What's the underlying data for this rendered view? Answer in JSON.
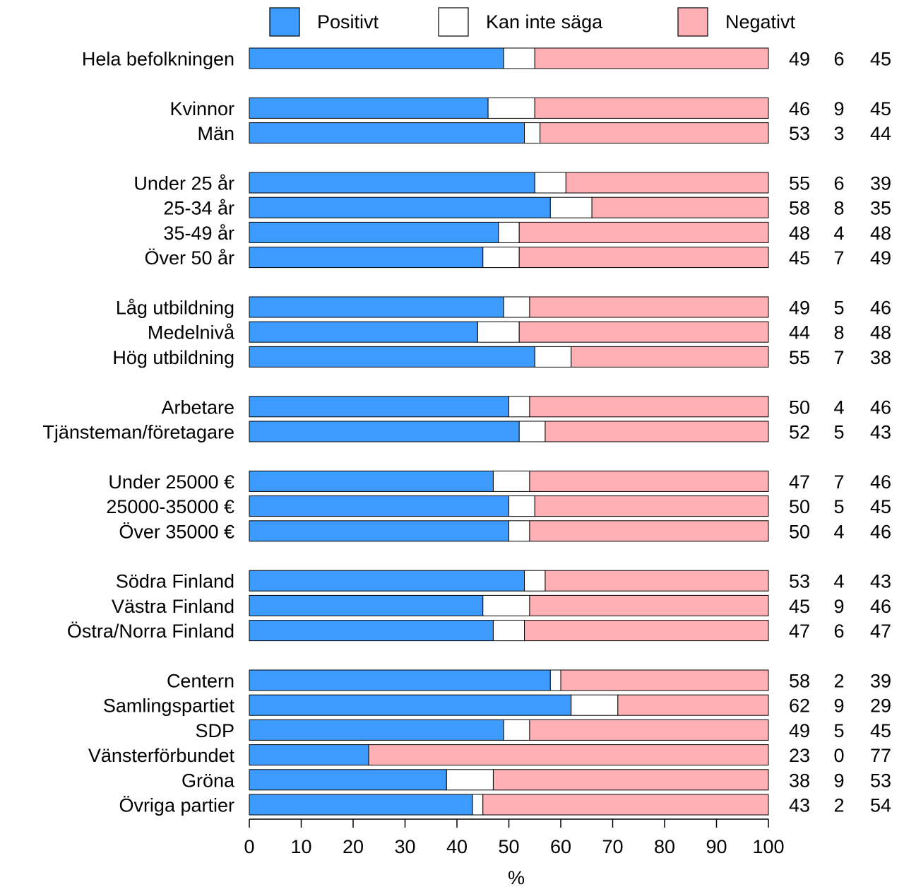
{
  "chart_data": {
    "type": "bar",
    "stacked": true,
    "orientation": "horizontal",
    "title": "",
    "xlabel": "%",
    "ylabel": "",
    "xlim": [
      0,
      100
    ],
    "x_ticks": [
      "0",
      "10",
      "20",
      "30",
      "40",
      "50",
      "60",
      "70",
      "80",
      "90",
      "100"
    ],
    "grid": false,
    "legend_position": "top",
    "legend_labels": [
      "Positivt",
      "Kan inte säga",
      "Negativt"
    ],
    "colors": {
      "positive": "#3d9bff",
      "neutral": "#ffffff",
      "negative": "#ffb0b4"
    },
    "value_columns": [
      "Positivt",
      "Kan inte säga",
      "Negativt"
    ],
    "categories": [
      "Hela befolkningen",
      "Kvinnor",
      "Män",
      "Under 25 år",
      "25-34 år",
      "35-49 år",
      "Över 50 år",
      "Låg utbildning",
      "Medelnivå",
      "Hög utbildning",
      "Arbetare",
      "Tjänsteman/företagare",
      "Under 25000 €",
      "25000-35000 €",
      "Över 35000 €",
      "Södra Finland",
      "Västra Finland",
      "Östra/Norra Finland",
      "Centern",
      "Samlingspartiet",
      "SDP",
      "Vänsterförbundet",
      "Gröna",
      "Övriga partier"
    ],
    "groups": [
      1,
      2,
      4,
      3,
      2,
      3,
      3,
      6
    ],
    "series": [
      {
        "name": "Positivt",
        "values": [
          49,
          46,
          53,
          55,
          58,
          48,
          45,
          49,
          44,
          55,
          50,
          52,
          47,
          50,
          50,
          53,
          45,
          47,
          58,
          62,
          49,
          23,
          38,
          43
        ]
      },
      {
        "name": "Kan inte säga",
        "values": [
          6,
          9,
          3,
          6,
          8,
          4,
          7,
          5,
          8,
          7,
          4,
          5,
          7,
          5,
          4,
          4,
          9,
          6,
          2,
          9,
          5,
          0,
          9,
          2
        ]
      },
      {
        "name": "Negativt",
        "values": [
          45,
          45,
          44,
          39,
          35,
          48,
          49,
          46,
          48,
          38,
          46,
          43,
          46,
          45,
          46,
          43,
          46,
          47,
          39,
          29,
          45,
          77,
          53,
          54
        ]
      }
    ]
  }
}
